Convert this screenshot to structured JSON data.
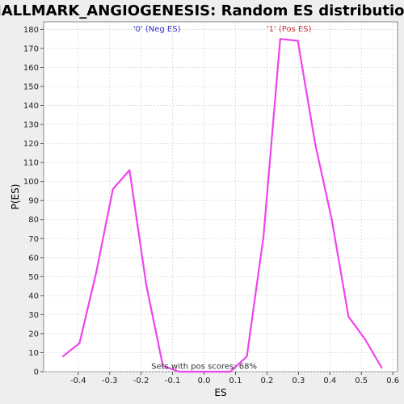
{
  "chart_data": {
    "type": "line",
    "title": "HALLMARK_ANGIOGENESIS: Random ES distribution",
    "xlabel": "ES",
    "ylabel": "P(ES)",
    "xlim": [
      -0.51,
      0.615
    ],
    "ylim": [
      0,
      184
    ],
    "xticks": [
      -0.4,
      -0.3,
      -0.2,
      -0.1,
      0.0,
      0.1,
      0.2,
      0.3,
      0.4,
      0.5,
      0.6
    ],
    "xtick_labels": [
      "-0.4",
      "-0.3",
      "-0.2",
      "-0.1",
      "0.0",
      "0.1",
      "0.2",
      "0.3",
      "0.4",
      "0.5",
      "0.6"
    ],
    "yticks": [
      0,
      10,
      20,
      30,
      40,
      50,
      60,
      70,
      80,
      90,
      100,
      110,
      120,
      130,
      140,
      150,
      160,
      170,
      180
    ],
    "ytick_labels": [
      "0",
      "10",
      "20",
      "30",
      "40",
      "50",
      "60",
      "70",
      "80",
      "90",
      "100",
      "110",
      "120",
      "130",
      "140",
      "150",
      "160",
      "170",
      "180"
    ],
    "grid": true,
    "series": [
      {
        "color": "#ee44ee",
        "x": [
          -0.449,
          -0.396,
          -0.343,
          -0.29,
          -0.237,
          -0.184,
          -0.131,
          -0.078,
          -0.025,
          0.03,
          0.083,
          0.136,
          0.189,
          0.242,
          0.298,
          0.353,
          0.406,
          0.459,
          0.512,
          0.565
        ],
        "y": [
          8,
          15,
          52,
          96,
          106,
          46,
          3,
          0,
          0,
          0,
          0,
          8,
          71,
          175,
          174,
          120,
          80,
          29,
          17,
          2
        ]
      }
    ],
    "annotations": [
      {
        "text": "'0' (Neg ES)",
        "x": -0.15,
        "y": 179,
        "color": "#3333cc"
      },
      {
        "text": "'1' (Pos ES)",
        "x": 0.27,
        "y": 179,
        "color": "#cc3333"
      },
      {
        "text": "Sets with pos scores: 68%",
        "x": 0.0,
        "y": 1.5,
        "color": "#333333"
      }
    ]
  }
}
